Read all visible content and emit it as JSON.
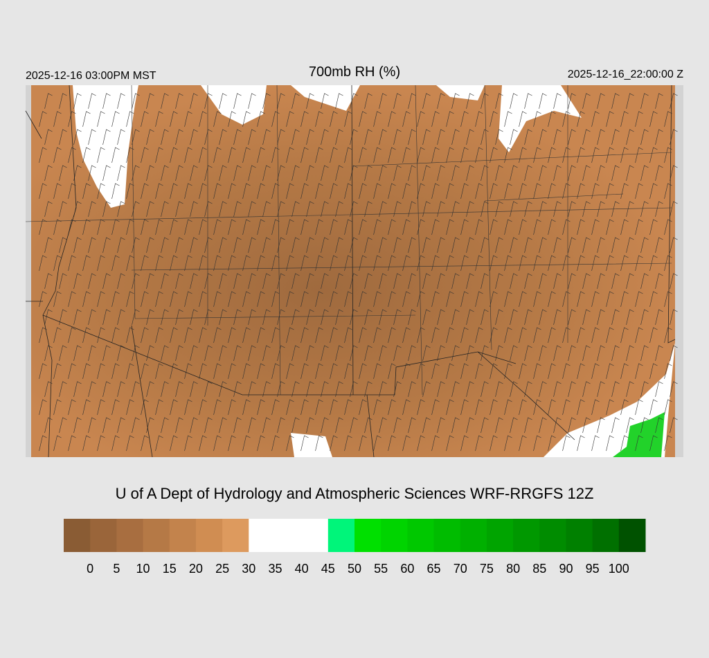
{
  "header": {
    "valid_local": "2025-12-16 03:00PM MST",
    "title": "700mb RH (%)",
    "valid_utc": "2025-12-16_22:00:00 Z"
  },
  "footer": {
    "credit": "U of A Dept of Hydrology and Atmospheric Sciences WRF-RRGFS 12Z"
  },
  "colorbar": {
    "levels": [
      0,
      5,
      10,
      15,
      20,
      25,
      30,
      35,
      40,
      45,
      50,
      55,
      60,
      65,
      70,
      75,
      80,
      85,
      90,
      95,
      100
    ],
    "colors": [
      "#8a5c34",
      "#9a653a",
      "#a86e40",
      "#b57946",
      "#c3834c",
      "#d08d52",
      "#dd9a5e",
      "#ffffff",
      "#ffffff",
      "#ffffff",
      "#00f57a",
      "#00e000",
      "#00d400",
      "#00c800",
      "#00bc00",
      "#00b000",
      "#00a400",
      "#009800",
      "#008c00",
      "#008000",
      "#007000",
      "#005200"
    ]
  }
}
